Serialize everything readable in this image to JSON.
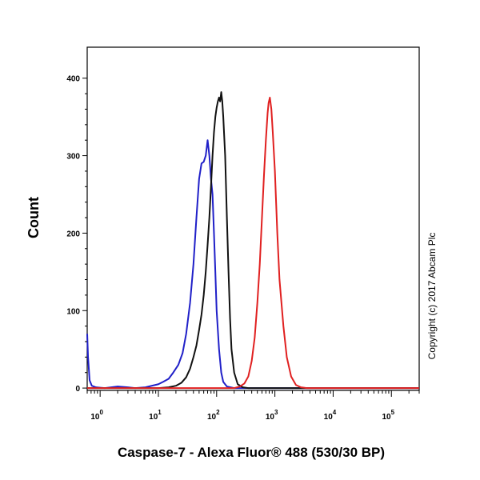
{
  "chart_data": {
    "type": "line",
    "title": "",
    "xlabel": "Caspase-7 - Alexa Fluor® 488 (530/30 BP)",
    "ylabel": "Count",
    "x_scale": "log",
    "xlim": [
      0.6,
      300000
    ],
    "ylim": [
      -3,
      440
    ],
    "y_ticks": [
      0,
      100,
      200,
      300,
      400
    ],
    "x_ticks": [
      {
        "value": 1,
        "base": "10",
        "exp": "0"
      },
      {
        "value": 10,
        "base": "10",
        "exp": "1"
      },
      {
        "value": 100,
        "base": "10",
        "exp": "2"
      },
      {
        "value": 1000,
        "base": "10",
        "exp": "3"
      },
      {
        "value": 10000,
        "base": "10",
        "exp": "4"
      },
      {
        "value": 100000,
        "base": "10",
        "exp": "5"
      }
    ],
    "grid": false,
    "series": [
      {
        "color": "#2020c8",
        "points": [
          [
            0.6,
            70
          ],
          [
            0.62,
            40
          ],
          [
            0.66,
            10
          ],
          [
            0.72,
            3
          ],
          [
            0.85,
            1
          ],
          [
            1.2,
            0
          ],
          [
            2,
            2
          ],
          [
            3,
            1
          ],
          [
            4,
            0
          ],
          [
            6,
            1
          ],
          [
            10,
            5
          ],
          [
            12,
            8
          ],
          [
            15,
            12
          ],
          [
            18,
            20
          ],
          [
            22,
            30
          ],
          [
            26,
            45
          ],
          [
            30,
            70
          ],
          [
            35,
            110
          ],
          [
            40,
            160
          ],
          [
            45,
            220
          ],
          [
            50,
            270
          ],
          [
            55,
            290
          ],
          [
            60,
            292
          ],
          [
            65,
            300
          ],
          [
            70,
            320
          ],
          [
            75,
            300
          ],
          [
            80,
            270
          ],
          [
            85,
            250
          ],
          [
            90,
            200
          ],
          [
            95,
            150
          ],
          [
            100,
            100
          ],
          [
            110,
            50
          ],
          [
            120,
            20
          ],
          [
            130,
            8
          ],
          [
            150,
            2
          ],
          [
            200,
            0
          ],
          [
            300000,
            0
          ]
        ]
      },
      {
        "color": "#111111",
        "points": [
          [
            0.6,
            0
          ],
          [
            10,
            0
          ],
          [
            15,
            1
          ],
          [
            20,
            3
          ],
          [
            25,
            7
          ],
          [
            30,
            14
          ],
          [
            35,
            25
          ],
          [
            40,
            40
          ],
          [
            45,
            55
          ],
          [
            50,
            75
          ],
          [
            55,
            95
          ],
          [
            60,
            120
          ],
          [
            65,
            150
          ],
          [
            70,
            185
          ],
          [
            75,
            220
          ],
          [
            80,
            260
          ],
          [
            85,
            300
          ],
          [
            90,
            330
          ],
          [
            95,
            350
          ],
          [
            100,
            362
          ],
          [
            105,
            370
          ],
          [
            110,
            375
          ],
          [
            115,
            370
          ],
          [
            120,
            382
          ],
          [
            125,
            370
          ],
          [
            130,
            350
          ],
          [
            140,
            300
          ],
          [
            150,
            220
          ],
          [
            160,
            150
          ],
          [
            170,
            90
          ],
          [
            180,
            50
          ],
          [
            200,
            20
          ],
          [
            230,
            5
          ],
          [
            280,
            1
          ],
          [
            350,
            0
          ],
          [
            300000,
            0
          ]
        ]
      },
      {
        "color": "#e02020",
        "points": [
          [
            0.6,
            0
          ],
          [
            200,
            0
          ],
          [
            250,
            2
          ],
          [
            300,
            6
          ],
          [
            350,
            15
          ],
          [
            400,
            35
          ],
          [
            450,
            65
          ],
          [
            500,
            110
          ],
          [
            550,
            160
          ],
          [
            600,
            220
          ],
          [
            650,
            275
          ],
          [
            700,
            320
          ],
          [
            750,
            355
          ],
          [
            780,
            368
          ],
          [
            820,
            375
          ],
          [
            870,
            360
          ],
          [
            920,
            330
          ],
          [
            1000,
            280
          ],
          [
            1100,
            200
          ],
          [
            1200,
            140
          ],
          [
            1400,
            80
          ],
          [
            1600,
            40
          ],
          [
            1900,
            15
          ],
          [
            2300,
            4
          ],
          [
            2800,
            1
          ],
          [
            3500,
            0
          ],
          [
            300000,
            0
          ]
        ]
      }
    ],
    "annotation": "Copyright (c) 2017 Abcam Plc"
  }
}
